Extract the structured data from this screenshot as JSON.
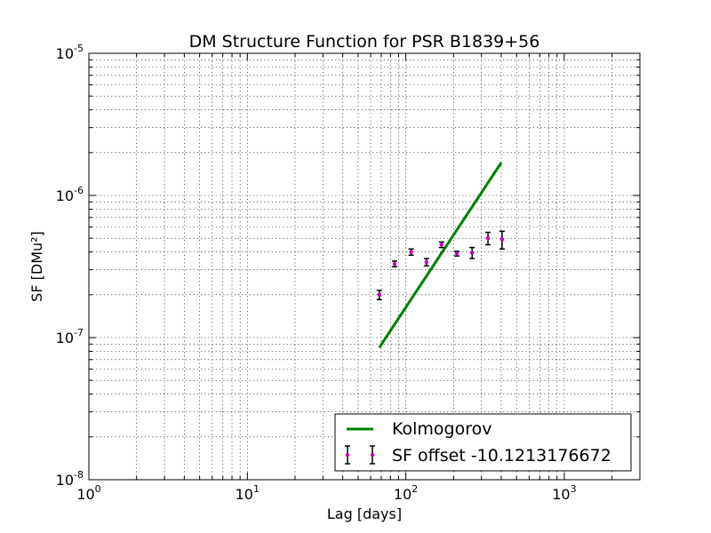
{
  "chart_data": {
    "type": "scatter",
    "title": "DM Structure Function for PSR B1839+56",
    "xlabel": "Lag [days]",
    "ylabel": "SF [DMu²]",
    "xscale": "log",
    "yscale": "log",
    "xlim": [
      1,
      3000
    ],
    "ylim": [
      1e-08,
      1e-05
    ],
    "grid": true,
    "legend_position": "lower-right",
    "x_ticks": [
      {
        "value": 1,
        "base": "10",
        "exp": "0"
      },
      {
        "value": 10,
        "base": "10",
        "exp": "1"
      },
      {
        "value": 100,
        "base": "10",
        "exp": "2"
      },
      {
        "value": 1000,
        "base": "10",
        "exp": "3"
      }
    ],
    "y_ticks": [
      {
        "value": 1e-08,
        "base": "10",
        "exp": "-8"
      },
      {
        "value": 1e-07,
        "base": "10",
        "exp": "-7"
      },
      {
        "value": 1e-06,
        "base": "10",
        "exp": "-6"
      },
      {
        "value": 1e-05,
        "base": "10",
        "exp": "-5"
      }
    ],
    "series": [
      {
        "name": "Kolmogorov",
        "kind": "line",
        "color": "#007f00",
        "x": [
          68,
          400
        ],
        "y": [
          8.5e-08,
          1.7e-06
        ]
      },
      {
        "name": "SF offset -10.1213176672",
        "kind": "errorbar",
        "color": "#bf00bf",
        "errcolor": "#000000",
        "x": [
          68,
          85,
          108,
          135,
          168,
          210,
          262,
          330,
          405
        ],
        "y": [
          2e-07,
          3.3e-07,
          4e-07,
          3.4e-07,
          4.5e-07,
          3.9e-07,
          3.95e-07,
          5e-07,
          4.9e-07
        ],
        "yerr": [
          1.5e-08,
          1.5e-08,
          2e-08,
          2e-08,
          2e-08,
          1.5e-08,
          3.5e-08,
          5e-08,
          7e-08
        ]
      }
    ]
  }
}
